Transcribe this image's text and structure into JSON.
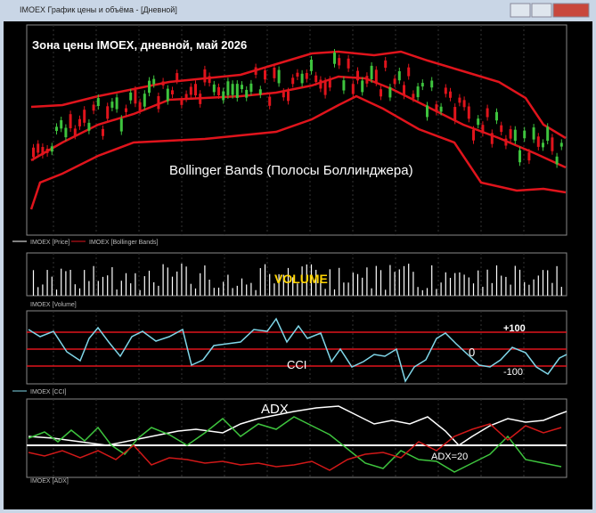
{
  "window": {
    "title": "IMOEX График цены и объёма - [Дневной]"
  },
  "price_panel": {
    "title": "Зона цены IMOEX, дневной, май 2026",
    "annotation": "Bollinger Bands (Полосы Боллинджера)",
    "legend": [
      "IMOEX [Price]",
      "IMOEX [Bollinger Bands]"
    ]
  },
  "volume_panel": {
    "label": "VOLUME",
    "legend": "IMOEX [Volume]"
  },
  "cci_panel": {
    "label": "CCI",
    "levels": [
      "+100",
      "0",
      "-100"
    ],
    "legend": "IMOEX [CCI]"
  },
  "adx_panel": {
    "label": "ADX",
    "annotation": "ADX=20",
    "legend": "IMOEX [ADX]"
  }
}
